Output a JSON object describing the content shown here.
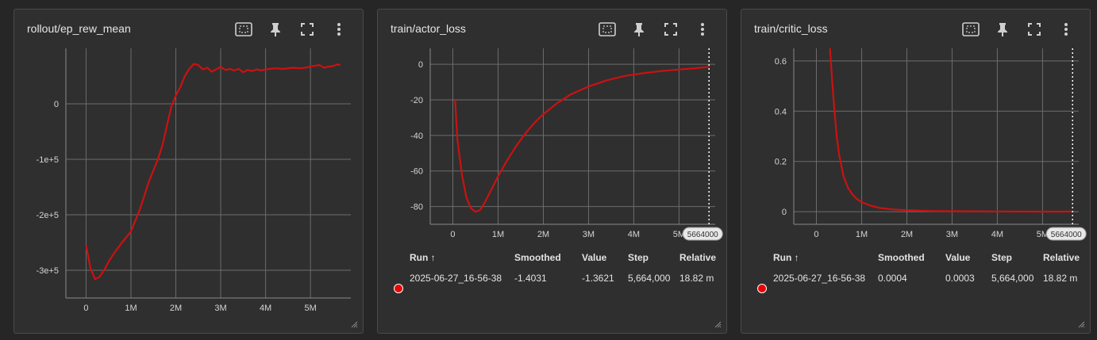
{
  "colors": {
    "series": "#cc1111",
    "accent_dot": "#ee1111"
  },
  "toolbar": {
    "icons": [
      "fit-domain-icon",
      "pin-icon",
      "fullscreen-icon",
      "more-vert-icon"
    ]
  },
  "cards": [
    {
      "title": "rollout/ep_rew_mean",
      "table": null
    },
    {
      "title": "train/actor_loss",
      "step_marker": "5664000",
      "table": {
        "headers": [
          "Run",
          "Smoothed",
          "Value",
          "Step",
          "Relative"
        ],
        "sort_arrow": "↑",
        "row": [
          "2025-06-27_16-56-38",
          "-1.4031",
          "-1.3621",
          "5,664,000",
          "18.82 m"
        ]
      }
    },
    {
      "title": "train/critic_loss",
      "step_marker": "5664000",
      "table": {
        "headers": [
          "Run",
          "Smoothed",
          "Value",
          "Step",
          "Relative"
        ],
        "sort_arrow": "↑",
        "row": [
          "2025-06-27_16-56-38",
          "0.0004",
          "0.0003",
          "5,664,000",
          "18.82 m"
        ]
      }
    }
  ],
  "chart_data": [
    {
      "type": "line",
      "title": "rollout/ep_rew_mean",
      "xlabel": "",
      "ylabel": "",
      "xlim": [
        -450000,
        5900000
      ],
      "ylim": [
        -350000,
        100000
      ],
      "xticks": [
        0,
        1000000,
        2000000,
        3000000,
        4000000,
        5000000
      ],
      "xtick_labels": [
        "0",
        "1M",
        "2M",
        "3M",
        "4M",
        "5M"
      ],
      "yticks": [
        0,
        -100000,
        -200000,
        -300000
      ],
      "ytick_labels": [
        "0",
        "-1e+5",
        "-2e+5",
        "-3e+5"
      ],
      "grid": true,
      "series": [
        {
          "x": [
            0,
            100000,
            200000,
            300000,
            400000,
            500000,
            600000,
            800000,
            1000000,
            1200000,
            1400000,
            1600000,
            1700000,
            1800000,
            1900000,
            2000000,
            2100000,
            2200000,
            2300000,
            2400000,
            2500000,
            2600000,
            2700000,
            2800000,
            2900000,
            3000000,
            3100000,
            3200000,
            3300000,
            3400000,
            3500000,
            3600000,
            3700000,
            3800000,
            3900000,
            4000000,
            4200000,
            4400000,
            4600000,
            4800000,
            5000000,
            5200000,
            5300000,
            5400000,
            5500000,
            5600000,
            5664000
          ],
          "y": [
            -255000,
            -297000,
            -316000,
            -312000,
            -300000,
            -285000,
            -272000,
            -250000,
            -230000,
            -190000,
            -140000,
            -100000,
            -75000,
            -40000,
            -5000,
            15000,
            30000,
            50000,
            63000,
            72000,
            70000,
            62000,
            65000,
            58000,
            62000,
            67000,
            61000,
            63000,
            60000,
            63000,
            57000,
            61000,
            59000,
            62000,
            60000,
            62000,
            64000,
            63000,
            65000,
            64000,
            67000,
            70000,
            65000,
            67000,
            68000,
            71000,
            70000
          ]
        }
      ]
    },
    {
      "type": "line",
      "title": "train/actor_loss",
      "xlabel": "",
      "ylabel": "",
      "xlim": [
        -500000,
        5800000
      ],
      "ylim": [
        -90,
        9
      ],
      "xticks": [
        0,
        1000000,
        2000000,
        3000000,
        4000000,
        5000000
      ],
      "xtick_labels": [
        "0",
        "1M",
        "2M",
        "3M",
        "4M",
        "5M"
      ],
      "yticks": [
        0,
        -20,
        -40,
        -60,
        -80
      ],
      "ytick_labels": [
        "0",
        "-20",
        "-40",
        "-60",
        "-80"
      ],
      "grid": true,
      "series": [
        {
          "x": [
            50000,
            100000,
            200000,
            300000,
            400000,
            500000,
            600000,
            700000,
            800000,
            1000000,
            1200000,
            1400000,
            1600000,
            1800000,
            2000000,
            2300000,
            2600000,
            3000000,
            3400000,
            3800000,
            4200000,
            4600000,
            5000000,
            5400000,
            5664000
          ],
          "y": [
            -20,
            -42,
            -62,
            -75,
            -81,
            -83,
            -82,
            -78,
            -73,
            -63,
            -54,
            -46,
            -39,
            -33,
            -28,
            -22,
            -17,
            -12.5,
            -9,
            -6.5,
            -5,
            -3.8,
            -2.9,
            -2.1,
            -1.4
          ]
        }
      ]
    },
    {
      "type": "line",
      "title": "train/critic_loss",
      "xlabel": "",
      "ylabel": "",
      "xlim": [
        -500000,
        5800000
      ],
      "ylim": [
        -0.05,
        0.65
      ],
      "xticks": [
        0,
        1000000,
        2000000,
        3000000,
        4000000,
        5000000
      ],
      "xtick_labels": [
        "0",
        "1M",
        "2M",
        "3M",
        "4M",
        "5M"
      ],
      "yticks": [
        0,
        0.2,
        0.4,
        0.6
      ],
      "ytick_labels": [
        "0",
        "0.2",
        "0.4",
        "0.6"
      ],
      "grid": true,
      "series": [
        {
          "x": [
            300000,
            350000,
            400000,
            450000,
            500000,
            600000,
            700000,
            800000,
            900000,
            1000000,
            1200000,
            1400000,
            1700000,
            2000000,
            2500000,
            3000000,
            4000000,
            5000000,
            5664000
          ],
          "y": [
            0.65,
            0.52,
            0.4,
            0.3,
            0.23,
            0.14,
            0.095,
            0.068,
            0.05,
            0.038,
            0.024,
            0.015,
            0.009,
            0.006,
            0.003,
            0.002,
            0.001,
            0.0006,
            0.0004
          ]
        }
      ]
    }
  ]
}
